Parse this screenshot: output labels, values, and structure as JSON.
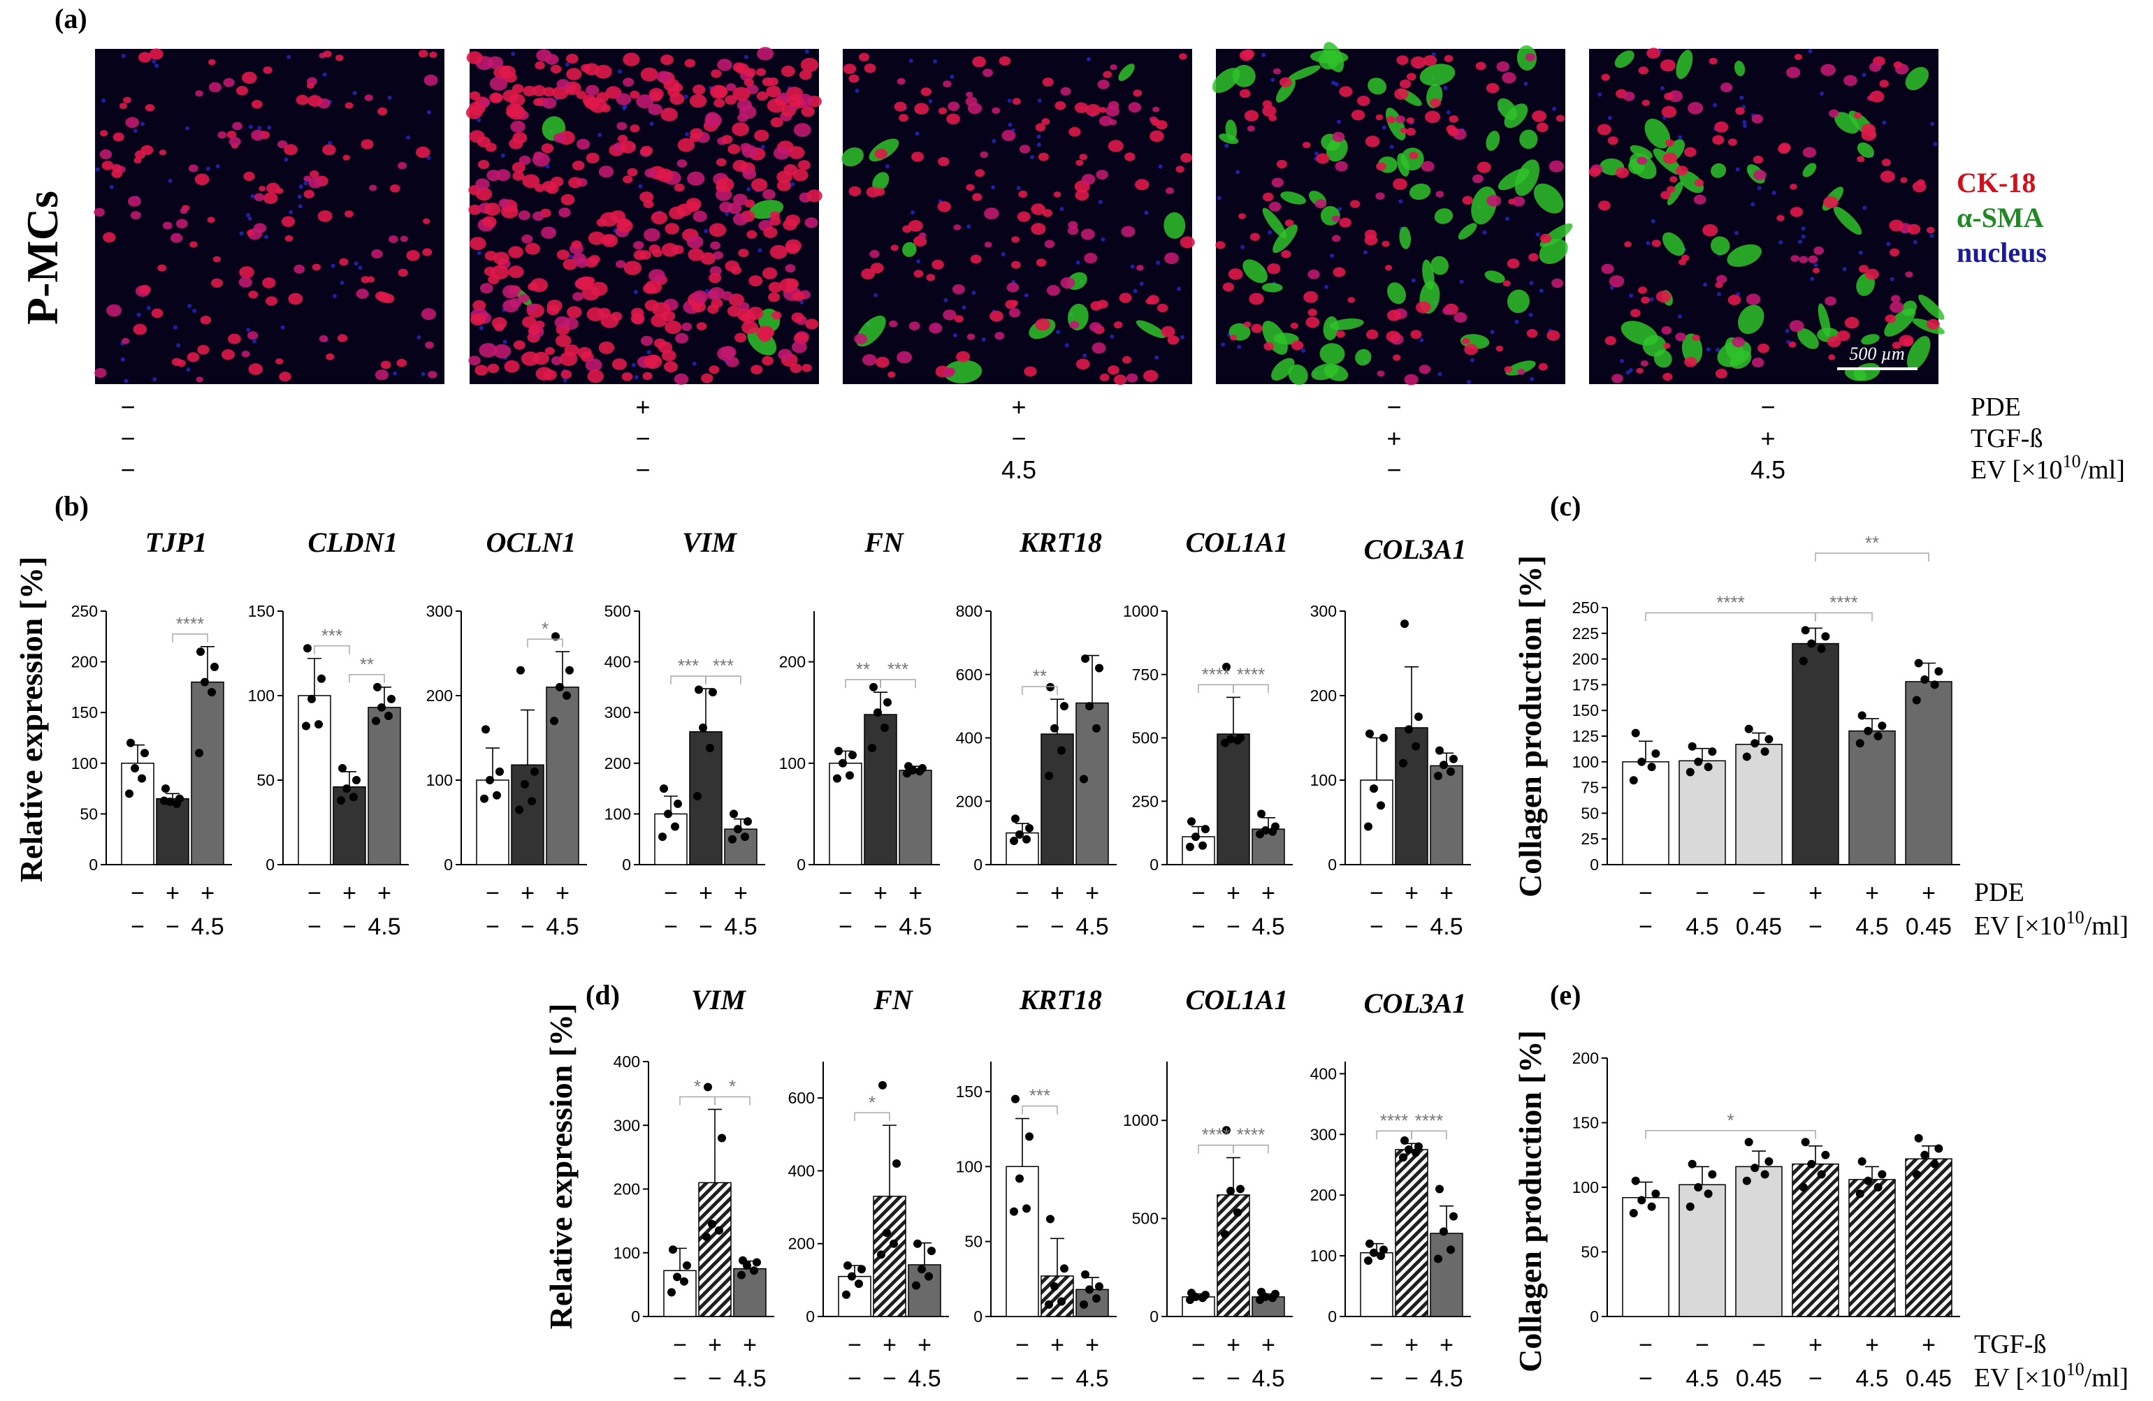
{
  "panel_labels": {
    "a": "(a)",
    "b": "(b)",
    "c": "(c)",
    "d": "(d)",
    "e": "(e)"
  },
  "panel_a": {
    "row_label": "P-MCs",
    "legend": [
      {
        "text": "CK-18",
        "color": "#d0101c"
      },
      {
        "text": "α-SMA",
        "color": "#1f8a24"
      },
      {
        "text": "nucleus",
        "color": "#1a1a9c"
      }
    ],
    "scale_bar": "500 µm",
    "conditions": [
      {
        "PDE": "−",
        "TGF": "−",
        "EV": "−"
      },
      {
        "PDE": "+",
        "TGF": "−",
        "EV": "−"
      },
      {
        "PDE": "+",
        "TGF": "−",
        "EV": "4.5"
      },
      {
        "PDE": "−",
        "TGF": "+",
        "EV": "−"
      },
      {
        "PDE": "−",
        "TGF": "+",
        "EV": "4.5"
      }
    ],
    "row_names": {
      "PDE": "PDE",
      "TGF": "TGF-ß",
      "EV": "EV [×10",
      "EV_exp": "10",
      "EV_unit": "/ml]"
    }
  },
  "axis_labels": {
    "relative_expression": "Relative expression [%]",
    "collagen_production": "Collagen production [%]"
  },
  "colors": {
    "white": "#ffffff",
    "dark": "#333333",
    "mid": "#6a6a6a",
    "light": "#d9d9d9",
    "sig": "#a8a8a8"
  },
  "chart_data": [
    {
      "id": "b-TJP1",
      "type": "bar",
      "title": "TJP1",
      "ylim": [
        0,
        250
      ],
      "ticks": [
        0,
        50,
        100,
        150,
        200,
        250
      ],
      "row1": [
        "−",
        "+",
        "+"
      ],
      "row2": [
        "−",
        "−",
        "4.5"
      ],
      "fills": [
        "white",
        "dark",
        "mid"
      ],
      "values": [
        100,
        65,
        180
      ],
      "sd": [
        18,
        5,
        35
      ],
      "points": [
        [
          120,
          110,
          95,
          85,
          70
        ],
        [
          75,
          65,
          62,
          60,
          63
        ],
        [
          210,
          195,
          180,
          170,
          110
        ]
      ],
      "sig": [
        {
          "from": 1,
          "to": 2,
          "label": "****"
        }
      ]
    },
    {
      "id": "b-CLDN1",
      "type": "bar",
      "title": "CLDN1",
      "ylim": [
        0,
        150
      ],
      "ticks": [
        0,
        50,
        100,
        150
      ],
      "row1": [
        "−",
        "+",
        "+"
      ],
      "row2": [
        "−",
        "−",
        "4.5"
      ],
      "fills": [
        "white",
        "dark",
        "mid"
      ],
      "values": [
        100,
        46,
        93
      ],
      "sd": [
        22,
        9,
        12
      ],
      "points": [
        [
          128,
          110,
          98,
          83,
          82
        ],
        [
          57,
          50,
          45,
          40,
          38
        ],
        [
          105,
          98,
          93,
          88,
          85
        ]
      ],
      "sig": [
        {
          "from": 0,
          "to": 1,
          "label": "***"
        },
        {
          "from": 1,
          "to": 2,
          "label": "**"
        }
      ]
    },
    {
      "id": "b-OCLN1",
      "type": "bar",
      "title": "OCLN1",
      "ylim": [
        0,
        300
      ],
      "ticks": [
        0,
        100,
        200,
        300
      ],
      "row1": [
        "−",
        "+",
        "+"
      ],
      "row2": [
        "−",
        "−",
        "4.5"
      ],
      "fills": [
        "white",
        "dark",
        "mid"
      ],
      "values": [
        100,
        118,
        210
      ],
      "sd": [
        38,
        65,
        42
      ],
      "points": [
        [
          160,
          110,
          100,
          82,
          78
        ],
        [
          230,
          110,
          95,
          75,
          65
        ],
        [
          270,
          230,
          210,
          200,
          170
        ]
      ],
      "sig": [
        {
          "from": 1,
          "to": 2,
          "label": "*"
        }
      ]
    },
    {
      "id": "b-VIM",
      "type": "bar",
      "title": "VIM",
      "ylim": [
        0,
        500
      ],
      "ticks": [
        0,
        100,
        200,
        300,
        400,
        500
      ],
      "row1": [
        "−",
        "+",
        "+"
      ],
      "row2": [
        "−",
        "−",
        "4.5"
      ],
      "fills": [
        "white",
        "dark",
        "mid"
      ],
      "values": [
        100,
        262,
        70
      ],
      "sd": [
        35,
        85,
        20
      ],
      "points": [
        [
          150,
          120,
          100,
          75,
          55
        ],
        [
          345,
          340,
          270,
          230,
          135
        ],
        [
          100,
          85,
          70,
          55,
          50
        ]
      ],
      "sig": [
        {
          "from": 0,
          "to": 1,
          "label": "***"
        },
        {
          "from": 1,
          "to": 2,
          "label": "***"
        }
      ]
    },
    {
      "id": "b-FN",
      "type": "bar",
      "title": "FN",
      "ylim": [
        0,
        250
      ],
      "ticks": [
        0,
        100,
        200
      ],
      "row1": [
        "−",
        "+",
        "+"
      ],
      "row2": [
        "−",
        "−",
        "4.5"
      ],
      "fills": [
        "white",
        "dark",
        "mid"
      ],
      "values": [
        100,
        148,
        93
      ],
      "sd": [
        12,
        22,
        4
      ],
      "points": [
        [
          112,
          108,
          100,
          88,
          85
        ],
        [
          175,
          160,
          150,
          135,
          115
        ],
        [
          97,
          95,
          93,
          92,
          90
        ]
      ],
      "sig": [
        {
          "from": 0,
          "to": 1,
          "label": "**"
        },
        {
          "from": 1,
          "to": 2,
          "label": "***"
        }
      ]
    },
    {
      "id": "b-KRT18",
      "type": "bar",
      "title": "KRT18",
      "ylim": [
        0,
        800
      ],
      "ticks": [
        0,
        200,
        400,
        600,
        800
      ],
      "row1": [
        "−",
        "+",
        "+"
      ],
      "row2": [
        "−",
        "−",
        "4.5"
      ],
      "fills": [
        "white",
        "dark",
        "mid"
      ],
      "values": [
        100,
        412,
        510
      ],
      "sd": [
        30,
        110,
        150
      ],
      "points": [
        [
          145,
          115,
          95,
          80,
          75
        ],
        [
          560,
          500,
          430,
          360,
          280
        ],
        [
          650,
          620,
          500,
          430,
          270
        ]
      ],
      "sig": [
        {
          "from": 0,
          "to": 1,
          "label": "**"
        }
      ]
    },
    {
      "id": "b-COL1A1",
      "type": "bar",
      "title": "COL1A1",
      "ylim": [
        0,
        1000
      ],
      "ticks": [
        0,
        250,
        500,
        750,
        1000
      ],
      "row1": [
        "−",
        "+",
        "+"
      ],
      "row2": [
        "−",
        "−",
        "4.5"
      ],
      "fills": [
        "white",
        "dark",
        "mid"
      ],
      "values": [
        110,
        515,
        140
      ],
      "sd": [
        40,
        145,
        45
      ],
      "points": [
        [
          170,
          140,
          110,
          75,
          70
        ],
        [
          780,
          500,
          495,
          490,
          480
        ],
        [
          200,
          150,
          135,
          130,
          120
        ]
      ],
      "sig": [
        {
          "from": 0,
          "to": 1,
          "label": "****"
        },
        {
          "from": 1,
          "to": 2,
          "label": "****"
        }
      ]
    },
    {
      "id": "b-COL3A1",
      "type": "bar",
      "title": "COL3A1",
      "ylim": [
        0,
        300
      ],
      "ticks": [
        0,
        100,
        200,
        300
      ],
      "row1": [
        "−",
        "+",
        "+"
      ],
      "row2": [
        "−",
        "−",
        "4.5"
      ],
      "fills": [
        "white",
        "dark",
        "mid"
      ],
      "values": [
        100,
        162,
        117
      ],
      "sd": [
        50,
        72,
        15
      ],
      "points": [
        [
          155,
          150,
          90,
          70,
          45
        ],
        [
          285,
          175,
          160,
          140,
          120
        ],
        [
          135,
          125,
          118,
          110,
          105
        ]
      ],
      "sig": []
    },
    {
      "id": "c",
      "type": "bar",
      "title": "",
      "ylim": [
        0,
        250
      ],
      "ticks": [
        0,
        25,
        50,
        75,
        100,
        125,
        150,
        175,
        200,
        225,
        250
      ],
      "row1": [
        "−",
        "−",
        "−",
        "+",
        "+",
        "+"
      ],
      "row2": [
        "−",
        "4.5",
        "0.45",
        "−",
        "4.5",
        "0.45"
      ],
      "row_names": {
        "r1": "PDE",
        "r2": "EV [×10",
        "exp": "10",
        "unit": "/ml]"
      },
      "fills": [
        "white",
        "light",
        "light",
        "dark",
        "mid",
        "mid"
      ],
      "values": [
        100,
        101,
        117,
        215,
        130,
        178
      ],
      "sd": [
        20,
        12,
        11,
        15,
        12,
        18
      ],
      "points": [
        [
          128,
          108,
          100,
          95,
          82
        ],
        [
          115,
          110,
          100,
          95,
          90
        ],
        [
          132,
          122,
          118,
          110,
          105
        ],
        [
          228,
          222,
          215,
          210,
          198
        ],
        [
          145,
          135,
          130,
          125,
          118
        ],
        [
          196,
          188,
          180,
          175,
          160
        ]
      ],
      "sig": [
        {
          "from": 0,
          "to": 3,
          "label": "****",
          "level": 0
        },
        {
          "from": 3,
          "to": 4,
          "label": "****",
          "level": 0
        },
        {
          "from": 3,
          "to": 5,
          "label": "**",
          "level": 1
        }
      ]
    },
    {
      "id": "d-VIM",
      "type": "bar",
      "title": "VIM",
      "ylim": [
        0,
        400
      ],
      "ticks": [
        0,
        100,
        200,
        300,
        400
      ],
      "row1": [
        "−",
        "+",
        "+"
      ],
      "row2": [
        "−",
        "−",
        "4.5"
      ],
      "fills": [
        "white",
        "hatch",
        "mid"
      ],
      "values": [
        72,
        210,
        75
      ],
      "sd": [
        35,
        115,
        12
      ],
      "points": [
        [
          105,
          80,
          62,
          55,
          38
        ],
        [
          360,
          280,
          145,
          135,
          125
        ],
        [
          88,
          85,
          80,
          72,
          65
        ]
      ],
      "sig": [
        {
          "from": 0,
          "to": 1,
          "label": "*"
        },
        {
          "from": 1,
          "to": 2,
          "label": "*"
        }
      ]
    },
    {
      "id": "d-FN",
      "type": "bar",
      "title": "FN",
      "ylim": [
        0,
        700
      ],
      "ticks": [
        0,
        200,
        400,
        600
      ],
      "row1": [
        "−",
        "+",
        "+"
      ],
      "row2": [
        "−",
        "−",
        "4.5"
      ],
      "fills": [
        "white",
        "hatch",
        "mid"
      ],
      "values": [
        110,
        330,
        142
      ],
      "sd": [
        30,
        195,
        60
      ],
      "points": [
        [
          140,
          130,
          110,
          90,
          60
        ],
        [
          635,
          420,
          230,
          200,
          170
        ],
        [
          200,
          180,
          130,
          110,
          85
        ]
      ],
      "sig": [
        {
          "from": 0,
          "to": 1,
          "label": "*"
        }
      ]
    },
    {
      "id": "d-KRT18",
      "type": "bar",
      "title": "KRT18",
      "ylim": [
        0,
        170
      ],
      "ticks": [
        0,
        50,
        100,
        150
      ],
      "row1": [
        "−",
        "+",
        "+"
      ],
      "row2": [
        "−",
        "−",
        "4.5"
      ],
      "fills": [
        "white",
        "hatch",
        "mid"
      ],
      "values": [
        100,
        27,
        18
      ],
      "sd": [
        32,
        25,
        8
      ],
      "points": [
        [
          145,
          120,
          92,
          72,
          70
        ],
        [
          65,
          32,
          20,
          10,
          8
        ],
        [
          28,
          20,
          18,
          12,
          8
        ]
      ],
      "sig": [
        {
          "from": 0,
          "to": 1,
          "label": "***"
        }
      ]
    },
    {
      "id": "d-COL1A1",
      "type": "bar",
      "title": "COL1A1",
      "ylim": [
        0,
        1300
      ],
      "ticks": [
        0,
        500,
        1000
      ],
      "row1": [
        "−",
        "+",
        "+"
      ],
      "row2": [
        "−",
        "−",
        "4.5"
      ],
      "fills": [
        "white",
        "hatch",
        "mid"
      ],
      "values": [
        100,
        620,
        100
      ],
      "sd": [
        15,
        190,
        15
      ],
      "points": [
        [
          120,
          110,
          100,
          95,
          85
        ],
        [
          950,
          650,
          640,
          530,
          420
        ],
        [
          125,
          115,
          100,
          95,
          85
        ]
      ],
      "sig": [
        {
          "from": 0,
          "to": 1,
          "label": "****"
        },
        {
          "from": 1,
          "to": 2,
          "label": "****"
        }
      ]
    },
    {
      "id": "d-COL3A1",
      "type": "bar",
      "title": "COL3A1",
      "ylim": [
        0,
        420
      ],
      "ticks": [
        0,
        100,
        200,
        300,
        400
      ],
      "row1": [
        "−",
        "+",
        "+"
      ],
      "row2": [
        "−",
        "−",
        "4.5"
      ],
      "fills": [
        "white",
        "hatch",
        "mid"
      ],
      "values": [
        105,
        275,
        137
      ],
      "sd": [
        15,
        10,
        45
      ],
      "points": [
        [
          120,
          110,
          105,
          100,
          92
        ],
        [
          290,
          280,
          275,
          270,
          262
        ],
        [
          210,
          165,
          140,
          110,
          95
        ]
      ],
      "sig": [
        {
          "from": 0,
          "to": 1,
          "label": "****"
        },
        {
          "from": 1,
          "to": 2,
          "label": "****"
        }
      ]
    },
    {
      "id": "e",
      "type": "bar",
      "title": "",
      "ylim": [
        0,
        200
      ],
      "ticks": [
        0,
        50,
        100,
        150,
        200
      ],
      "row1": [
        "−",
        "−",
        "−",
        "+",
        "+",
        "+"
      ],
      "row2": [
        "−",
        "4.5",
        "0.45",
        "−",
        "4.5",
        "0.45"
      ],
      "row_names": {
        "r1": "TGF-ß",
        "r2": "EV [×10",
        "exp": "10",
        "unit": "/ml]"
      },
      "fills": [
        "white",
        "light",
        "light",
        "hatch",
        "hatch",
        "hatch"
      ],
      "values": [
        92,
        102,
        116,
        118,
        106,
        122
      ],
      "sd": [
        12,
        14,
        12,
        14,
        10,
        10
      ],
      "points": [
        [
          105,
          95,
          90,
          85,
          80
        ],
        [
          118,
          110,
          100,
          95,
          85
        ],
        [
          135,
          120,
          115,
          110,
          105
        ],
        [
          135,
          125,
          118,
          110,
          100
        ],
        [
          120,
          110,
          105,
          100,
          95
        ],
        [
          138,
          130,
          125,
          118,
          110
        ]
      ],
      "sig": [
        {
          "from": 0,
          "to": 3,
          "label": "*",
          "level": 0
        }
      ]
    }
  ]
}
